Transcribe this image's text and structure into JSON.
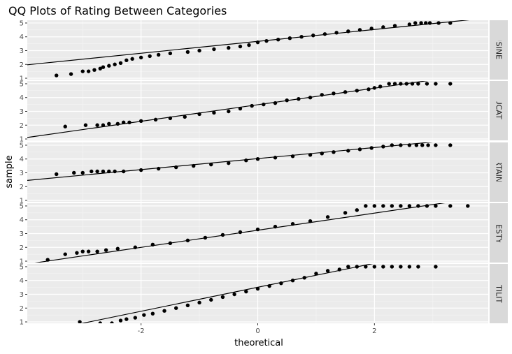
{
  "chart_data": {
    "type": "scatter",
    "title": "QQ Plots of Rating Between Categories",
    "xlabel": "theoretical",
    "ylabel": "sample",
    "xlim": [
      -3.95,
      3.95
    ],
    "ylim": [
      0.9,
      5.2
    ],
    "x_ticks": [
      -2,
      0,
      2
    ],
    "y_ticks": [
      1,
      2,
      3,
      4,
      5
    ],
    "grid": true,
    "facet_direction": "rows",
    "facets": [
      {
        "name": "BUSINESS",
        "reference_line": {
          "intercept": 3.67,
          "slope": 0.43
        },
        "points": [
          [
            -3.45,
            1.2
          ],
          [
            -3.2,
            1.3
          ],
          [
            -3.0,
            1.5
          ],
          [
            -2.9,
            1.5
          ],
          [
            -2.8,
            1.6
          ],
          [
            -2.7,
            1.7
          ],
          [
            -2.65,
            1.8
          ],
          [
            -2.55,
            1.9
          ],
          [
            -2.45,
            2.0
          ],
          [
            -2.35,
            2.1
          ],
          [
            -2.25,
            2.3
          ],
          [
            -2.15,
            2.4
          ],
          [
            -2.0,
            2.5
          ],
          [
            -1.85,
            2.6
          ],
          [
            -1.7,
            2.7
          ],
          [
            -1.5,
            2.8
          ],
          [
            -1.2,
            2.9
          ],
          [
            -1.0,
            3.0
          ],
          [
            -0.75,
            3.1
          ],
          [
            -0.5,
            3.2
          ],
          [
            -0.3,
            3.3
          ],
          [
            -0.15,
            3.4
          ],
          [
            0.0,
            3.6
          ],
          [
            0.15,
            3.7
          ],
          [
            0.35,
            3.8
          ],
          [
            0.55,
            3.9
          ],
          [
            0.75,
            4.0
          ],
          [
            0.95,
            4.1
          ],
          [
            1.15,
            4.2
          ],
          [
            1.35,
            4.3
          ],
          [
            1.55,
            4.4
          ],
          [
            1.75,
            4.5
          ],
          [
            1.95,
            4.6
          ],
          [
            2.15,
            4.7
          ],
          [
            2.35,
            4.8
          ],
          [
            2.6,
            4.9
          ],
          [
            2.7,
            5.0
          ],
          [
            2.8,
            5.0
          ],
          [
            2.88,
            5.0
          ],
          [
            2.95,
            5.0
          ],
          [
            3.1,
            5.0
          ],
          [
            3.3,
            5.0
          ]
        ]
      },
      {
        "name": "EDUCATION",
        "reference_line": {
          "intercept": 3.48,
          "slope": 0.6
        },
        "points": [
          [
            -3.3,
            1.9
          ],
          [
            -2.95,
            2.0
          ],
          [
            -2.75,
            2.0
          ],
          [
            -2.65,
            2.0
          ],
          [
            -2.55,
            2.1
          ],
          [
            -2.4,
            2.1
          ],
          [
            -2.3,
            2.2
          ],
          [
            -2.2,
            2.2
          ],
          [
            -2.0,
            2.3
          ],
          [
            -1.75,
            2.4
          ],
          [
            -1.5,
            2.5
          ],
          [
            -1.25,
            2.6
          ],
          [
            -1.0,
            2.8
          ],
          [
            -0.75,
            2.9
          ],
          [
            -0.5,
            3.0
          ],
          [
            -0.3,
            3.2
          ],
          [
            -0.1,
            3.4
          ],
          [
            0.1,
            3.5
          ],
          [
            0.3,
            3.6
          ],
          [
            0.5,
            3.8
          ],
          [
            0.7,
            3.9
          ],
          [
            0.9,
            4.0
          ],
          [
            1.1,
            4.2
          ],
          [
            1.3,
            4.3
          ],
          [
            1.5,
            4.4
          ],
          [
            1.7,
            4.5
          ],
          [
            1.9,
            4.6
          ],
          [
            2.0,
            4.7
          ],
          [
            2.1,
            4.8
          ],
          [
            2.25,
            5.0
          ],
          [
            2.35,
            5.0
          ],
          [
            2.45,
            5.0
          ],
          [
            2.55,
            5.0
          ],
          [
            2.65,
            5.0
          ],
          [
            2.75,
            5.0
          ],
          [
            2.9,
            5.0
          ],
          [
            3.05,
            5.0
          ],
          [
            3.3,
            5.0
          ]
        ]
      },
      {
        "name": "ENTERTAINMENT",
        "reference_line": {
          "intercept": 4.03,
          "slope": 0.4
        },
        "points": [
          [
            -3.45,
            2.9
          ],
          [
            -3.15,
            3.0
          ],
          [
            -3.0,
            3.0
          ],
          [
            -2.85,
            3.1
          ],
          [
            -2.75,
            3.1
          ],
          [
            -2.65,
            3.1
          ],
          [
            -2.55,
            3.1
          ],
          [
            -2.45,
            3.1
          ],
          [
            -2.3,
            3.1
          ],
          [
            -2.0,
            3.2
          ],
          [
            -1.7,
            3.3
          ],
          [
            -1.4,
            3.4
          ],
          [
            -1.1,
            3.5
          ],
          [
            -0.8,
            3.6
          ],
          [
            -0.5,
            3.7
          ],
          [
            -0.2,
            3.9
          ],
          [
            0.0,
            4.0
          ],
          [
            0.3,
            4.1
          ],
          [
            0.6,
            4.2
          ],
          [
            0.9,
            4.3
          ],
          [
            1.1,
            4.4
          ],
          [
            1.3,
            4.5
          ],
          [
            1.55,
            4.6
          ],
          [
            1.75,
            4.7
          ],
          [
            1.95,
            4.8
          ],
          [
            2.15,
            4.9
          ],
          [
            2.3,
            5.0
          ],
          [
            2.45,
            5.0
          ],
          [
            2.6,
            5.0
          ],
          [
            2.72,
            5.0
          ],
          [
            2.82,
            5.0
          ],
          [
            2.92,
            5.0
          ],
          [
            3.05,
            5.0
          ],
          [
            3.3,
            5.0
          ]
        ]
      },
      {
        "name": "LIFESTYLE",
        "reference_line": {
          "intercept": 3.24,
          "slope": 0.62
        },
        "points": [
          [
            -3.6,
            1.1
          ],
          [
            -3.3,
            1.5
          ],
          [
            -3.1,
            1.6
          ],
          [
            -3.0,
            1.7
          ],
          [
            -2.9,
            1.7
          ],
          [
            -2.75,
            1.7
          ],
          [
            -2.6,
            1.8
          ],
          [
            -2.4,
            1.9
          ],
          [
            -2.1,
            2.0
          ],
          [
            -1.8,
            2.2
          ],
          [
            -1.5,
            2.3
          ],
          [
            -1.2,
            2.5
          ],
          [
            -0.9,
            2.7
          ],
          [
            -0.6,
            2.9
          ],
          [
            -0.3,
            3.1
          ],
          [
            0.0,
            3.3
          ],
          [
            0.3,
            3.5
          ],
          [
            0.6,
            3.7
          ],
          [
            0.9,
            3.9
          ],
          [
            1.2,
            4.2
          ],
          [
            1.5,
            4.5
          ],
          [
            1.7,
            4.7
          ],
          [
            1.85,
            5.0
          ],
          [
            2.0,
            5.0
          ],
          [
            2.15,
            5.0
          ],
          [
            2.3,
            5.0
          ],
          [
            2.45,
            5.0
          ],
          [
            2.6,
            5.0
          ],
          [
            2.75,
            5.0
          ],
          [
            2.9,
            5.0
          ],
          [
            3.05,
            5.0
          ],
          [
            3.3,
            5.0
          ],
          [
            3.6,
            5.0
          ]
        ]
      },
      {
        "name": "UTILITY",
        "reference_line": {
          "intercept": 3.51,
          "slope": 0.87
        },
        "points": [
          [
            -3.05,
            1.0
          ],
          [
            -2.7,
            0.9
          ],
          [
            -2.5,
            0.9
          ],
          [
            -2.35,
            1.1
          ],
          [
            -2.25,
            1.2
          ],
          [
            -2.1,
            1.3
          ],
          [
            -1.95,
            1.5
          ],
          [
            -1.8,
            1.6
          ],
          [
            -1.6,
            1.8
          ],
          [
            -1.4,
            2.0
          ],
          [
            -1.2,
            2.2
          ],
          [
            -1.0,
            2.4
          ],
          [
            -0.8,
            2.6
          ],
          [
            -0.6,
            2.8
          ],
          [
            -0.4,
            3.0
          ],
          [
            -0.2,
            3.2
          ],
          [
            0.0,
            3.4
          ],
          [
            0.2,
            3.6
          ],
          [
            0.4,
            3.8
          ],
          [
            0.6,
            4.0
          ],
          [
            0.8,
            4.2
          ],
          [
            1.0,
            4.5
          ],
          [
            1.2,
            4.7
          ],
          [
            1.4,
            4.8
          ],
          [
            1.55,
            5.0
          ],
          [
            1.7,
            5.0
          ],
          [
            1.85,
            5.0
          ],
          [
            2.0,
            5.0
          ],
          [
            2.15,
            5.0
          ],
          [
            2.3,
            5.0
          ],
          [
            2.45,
            5.0
          ],
          [
            2.6,
            5.0
          ],
          [
            2.75,
            5.0
          ],
          [
            3.05,
            5.0
          ]
        ]
      }
    ]
  }
}
